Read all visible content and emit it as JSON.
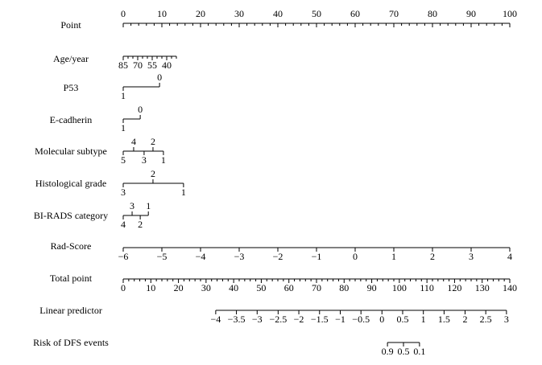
{
  "chart_data": {
    "type": "nomogram",
    "point_range": [
      0,
      100
    ],
    "total_range": [
      0,
      140
    ],
    "rows": [
      {
        "name": "Point",
        "scale": "point",
        "labels": "above",
        "ticks": [
          0,
          10,
          20,
          30,
          40,
          50,
          60,
          70,
          80,
          90,
          100
        ],
        "minor_ticks": [
          2,
          4,
          6,
          8,
          12,
          14,
          16,
          18,
          22,
          24,
          26,
          28,
          32,
          34,
          36,
          38,
          42,
          44,
          46,
          48,
          52,
          54,
          56,
          58,
          62,
          64,
          66,
          68,
          72,
          74,
          76,
          78,
          82,
          84,
          86,
          88,
          92,
          94,
          96,
          98
        ]
      },
      {
        "name": "Age/year",
        "scale": "point",
        "labels": "below",
        "ticks": [
          {
            "value": 0,
            "label": "85"
          },
          {
            "value": 3.75,
            "label": "70"
          },
          {
            "value": 7.5,
            "label": "55"
          },
          {
            "value": 11.25,
            "label": "40"
          }
        ],
        "minor_ticks": [
          1.25,
          2.5,
          5,
          6.25,
          8.75,
          10,
          12.5,
          13.75
        ]
      },
      {
        "name": "P53",
        "scale": "point",
        "labels": "alternate",
        "ticks": [
          {
            "value": 0,
            "label": "1"
          },
          {
            "value": 9.4,
            "label": "0"
          }
        ]
      },
      {
        "name": "E-cadherin",
        "scale": "point",
        "labels": "alternate",
        "ticks": [
          {
            "value": 0,
            "label": "1"
          },
          {
            "value": 4.4,
            "label": "0"
          }
        ]
      },
      {
        "name": "Molecular subtype",
        "scale": "point",
        "labels": "alternate",
        "ticks": [
          {
            "value": 0,
            "label": "5"
          },
          {
            "value": 2.7,
            "label": "4"
          },
          {
            "value": 5.4,
            "label": "3"
          },
          {
            "value": 7.7,
            "label": "2"
          },
          {
            "value": 10.4,
            "label": "1"
          }
        ]
      },
      {
        "name": "Histological grade",
        "scale": "point",
        "labels": "alternate",
        "ticks": [
          {
            "value": 0,
            "label": "3"
          },
          {
            "value": 7.7,
            "label": "2"
          },
          {
            "value": 15.6,
            "label": "1"
          }
        ]
      },
      {
        "name": "BI-RADS category",
        "scale": "point",
        "labels": "alternate",
        "ticks": [
          {
            "value": 0,
            "label": "4"
          },
          {
            "value": 2.3,
            "label": "3"
          },
          {
            "value": 4.4,
            "label": "2"
          },
          {
            "value": 6.5,
            "label": "1"
          }
        ]
      },
      {
        "name": "Rad-Score",
        "scale": "point",
        "labels": "below",
        "ticks": [
          {
            "value": 0,
            "label": "−6"
          },
          {
            "value": 10,
            "label": "−5"
          },
          {
            "value": 20,
            "label": "−4"
          },
          {
            "value": 30,
            "label": "−3"
          },
          {
            "value": 40,
            "label": "−2"
          },
          {
            "value": 50,
            "label": "−1"
          },
          {
            "value": 60,
            "label": "0"
          },
          {
            "value": 70,
            "label": "1"
          },
          {
            "value": 80,
            "label": "2"
          },
          {
            "value": 90,
            "label": "3"
          },
          {
            "value": 100,
            "label": "4"
          }
        ]
      },
      {
        "name": "Total point",
        "scale": "total",
        "labels": "below",
        "ticks": [
          0,
          10,
          20,
          30,
          40,
          50,
          60,
          70,
          80,
          90,
          100,
          110,
          120,
          130,
          140
        ],
        "minor_ticks": [
          2,
          4,
          6,
          8,
          12,
          14,
          16,
          18,
          22,
          24,
          26,
          28,
          32,
          34,
          36,
          38,
          42,
          44,
          46,
          48,
          52,
          54,
          56,
          58,
          62,
          64,
          66,
          68,
          72,
          74,
          76,
          78,
          82,
          84,
          86,
          88,
          92,
          94,
          96,
          98,
          102,
          104,
          106,
          108,
          112,
          114,
          116,
          118,
          122,
          124,
          126,
          128,
          132,
          134,
          136,
          138
        ]
      },
      {
        "name": "Linear predictor",
        "scale": "total",
        "labels": "below",
        "ticks": [
          {
            "value": 33.5,
            "label": "−4"
          },
          {
            "value": 41.0,
            "label": "−3.5"
          },
          {
            "value": 48.5,
            "label": "−3"
          },
          {
            "value": 56.1,
            "label": "−2.5"
          },
          {
            "value": 63.6,
            "label": "−2"
          },
          {
            "value": 71.1,
            "label": "−1.5"
          },
          {
            "value": 78.6,
            "label": "−1"
          },
          {
            "value": 86.1,
            "label": "−0.5"
          },
          {
            "value": 93.7,
            "label": "0"
          },
          {
            "value": 101.2,
            "label": "0.5"
          },
          {
            "value": 108.7,
            "label": "1"
          },
          {
            "value": 116.2,
            "label": "1.5"
          },
          {
            "value": 123.8,
            "label": "2"
          },
          {
            "value": 131.3,
            "label": "2.5"
          },
          {
            "value": 138.8,
            "label": "3"
          }
        ]
      },
      {
        "name": "Risk of DFS events",
        "scale": "total",
        "labels": "below",
        "ticks": [
          {
            "value": 95.7,
            "label": "0.9"
          },
          {
            "value": 101.5,
            "label": "0.5"
          },
          {
            "value": 107.3,
            "label": "0.1"
          }
        ]
      }
    ]
  }
}
